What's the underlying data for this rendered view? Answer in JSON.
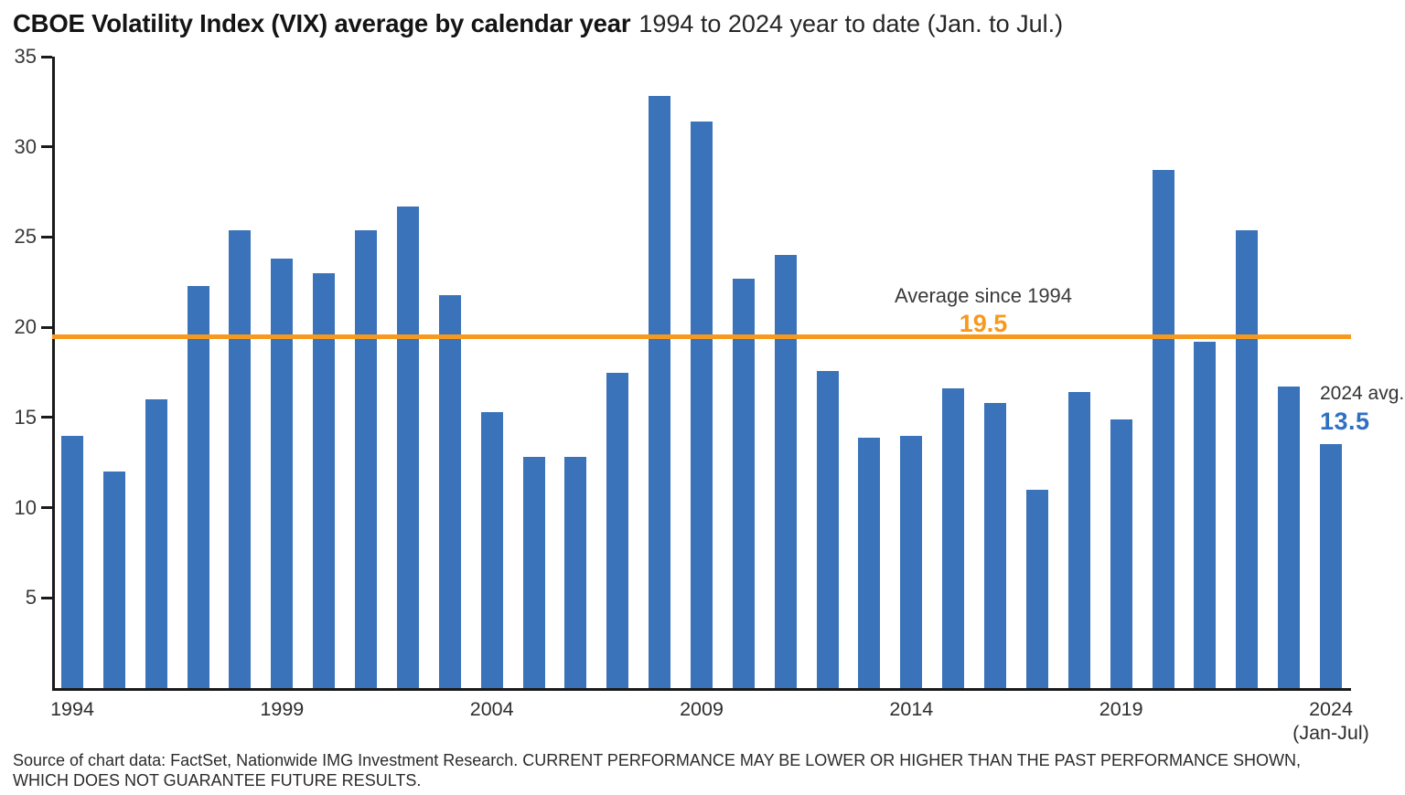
{
  "header": {
    "title_bold": "CBOE Volatility Index (VIX) average by calendar year",
    "title_suffix": "1994 to 2024 year to date (Jan. to Jul.)"
  },
  "annotations": {
    "avg_label": "Average since 1994",
    "avg_value": "19.5",
    "ytd_label": "2024 avg.",
    "ytd_value": "13.5"
  },
  "footer": {
    "source_line1": "Source of chart data: FactSet, Nationwide IMG Investment Research. CURRENT PERFORMANCE MAY BE LOWER OR HIGHER THAN THE PAST PERFORMANCE SHOWN,",
    "source_line2": "WHICH DOES NOT GUARANTEE FUTURE RESULTS."
  },
  "colors": {
    "bar": "#3A73B9",
    "orange": "#F7991D",
    "ytd_blue": "#2E70C2",
    "axis": "#1A1A1A"
  },
  "chart_data": {
    "type": "bar",
    "title": "CBOE Volatility Index (VIX) average by calendar year",
    "subtitle": "1994 to 2024 year to date (Jan. to Jul.)",
    "xlabel": "",
    "ylabel": "",
    "ylim": [
      0,
      35
    ],
    "yticks": [
      5,
      10,
      15,
      20,
      25,
      30,
      35
    ],
    "xticks": [
      1994,
      1999,
      2004,
      2009,
      2014,
      2019,
      2024
    ],
    "x_last_note": "(Jan-Jul)",
    "grid": false,
    "legend": false,
    "average_line": 19.5,
    "average_line_label": "Average since 1994",
    "last_bar_label": "2024 avg. 13.5",
    "categories": [
      1994,
      1995,
      1996,
      1997,
      1998,
      1999,
      2000,
      2001,
      2002,
      2003,
      2004,
      2005,
      2006,
      2007,
      2008,
      2009,
      2010,
      2011,
      2012,
      2013,
      2014,
      2015,
      2016,
      2017,
      2018,
      2019,
      2020,
      2021,
      2022,
      2023,
      2024
    ],
    "values": [
      14.0,
      12.0,
      16.0,
      22.3,
      25.4,
      23.8,
      23.0,
      25.4,
      26.7,
      21.8,
      15.3,
      12.8,
      12.8,
      17.5,
      32.8,
      31.4,
      22.7,
      24.0,
      17.6,
      13.9,
      14.0,
      16.6,
      15.8,
      11.0,
      16.4,
      14.9,
      28.7,
      19.2,
      25.4,
      16.7,
      13.5
    ]
  }
}
